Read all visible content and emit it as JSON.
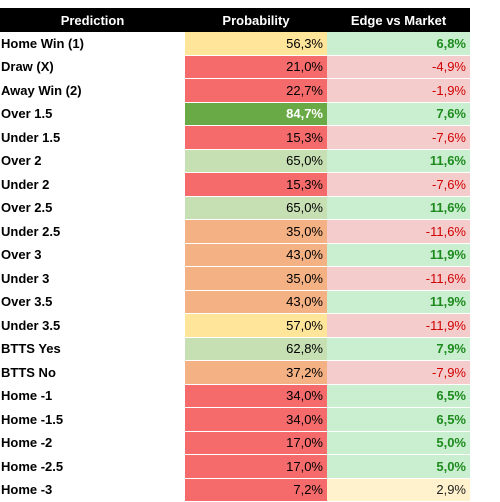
{
  "table": {
    "header": [
      "Prediction",
      "Probability",
      "Edge vs Market"
    ],
    "rows": [
      [
        "Home Win (1)",
        "56,3%",
        "6,8%"
      ],
      [
        "Draw (X)",
        "21,0%",
        "-4,9%"
      ],
      [
        "Away Win (2)",
        "22,7%",
        "-1,9%"
      ],
      [
        "Over 1.5",
        "84,7%",
        "7,6%"
      ],
      [
        "Under 1.5",
        "15,3%",
        "-7,6%"
      ],
      [
        "Over 2",
        "65,0%",
        "11,6%"
      ],
      [
        "Under 2",
        "15,3%",
        "-7,6%"
      ],
      [
        "Over 2.5",
        "65,0%",
        "11,6%"
      ],
      [
        "Under 2.5",
        "35,0%",
        "-11,6%"
      ],
      [
        "Over 3",
        "43,0%",
        "11,9%"
      ],
      [
        "Under 3",
        "35,0%",
        "-11,6%"
      ],
      [
        "Over 3.5",
        "43,0%",
        "11,9%"
      ],
      [
        "Under 3.5",
        "57,0%",
        "-11,9%"
      ],
      [
        "BTTS Yes",
        "62,8%",
        "7,9%"
      ],
      [
        "BTTS No",
        "37,2%",
        "-7,9%"
      ],
      [
        "Home -1",
        "34,0%",
        "6,5%"
      ],
      [
        "Home -1.5",
        "34,0%",
        "6,5%"
      ],
      [
        "Home -2",
        "17,0%",
        "5,0%"
      ],
      [
        "Home -2.5",
        "17,0%",
        "5,0%"
      ],
      [
        "Home -3",
        "7,2%",
        "2,9%"
      ]
    ]
  }
}
